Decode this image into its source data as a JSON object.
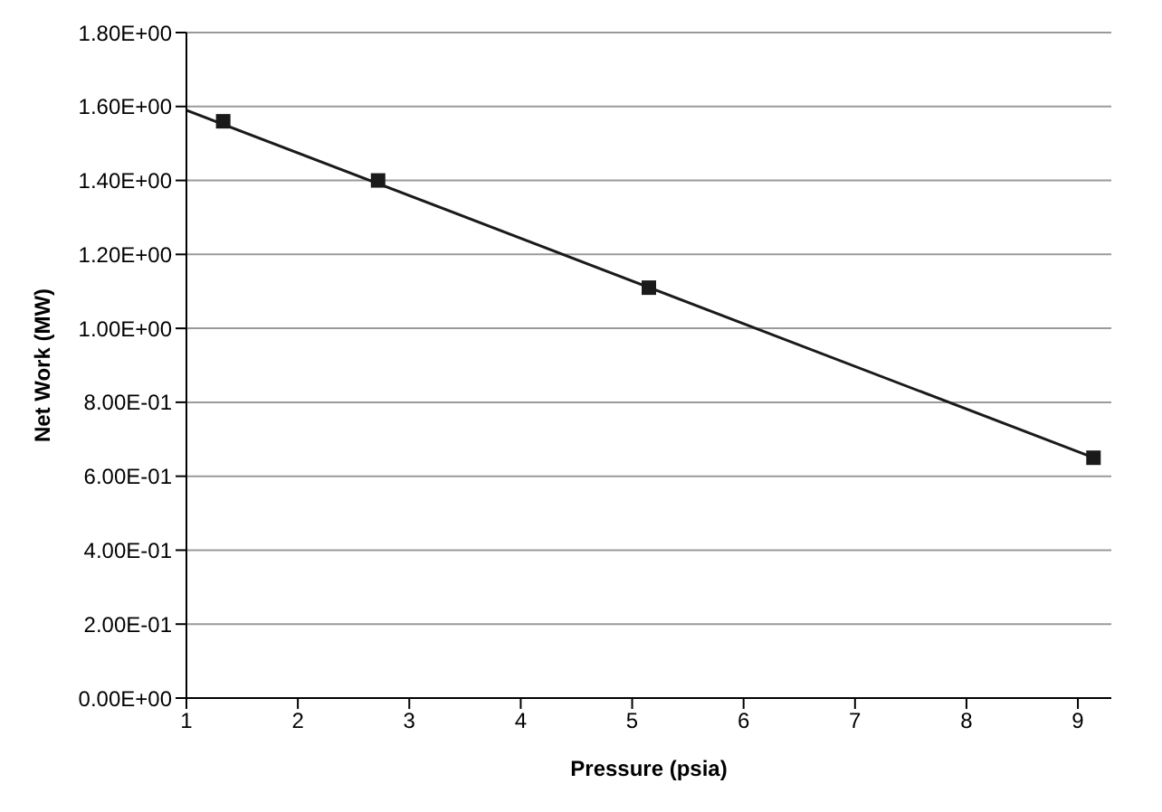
{
  "chart_data": {
    "type": "scatter",
    "xlabel": "Pressure (psia)",
    "ylabel": "Net Work (MW)",
    "xlim": [
      1,
      9.3
    ],
    "xticks": [
      1,
      2,
      3,
      4,
      5,
      6,
      7,
      8,
      9
    ],
    "ylim": [
      0,
      1.8
    ],
    "yticks": [
      {
        "value": 0,
        "label": "0.00E+00"
      },
      {
        "value": 0.2,
        "label": "2.00E-01"
      },
      {
        "value": 0.4,
        "label": "4.00E-01"
      },
      {
        "value": 0.6,
        "label": "6.00E-01"
      },
      {
        "value": 0.8,
        "label": "8.00E-01"
      },
      {
        "value": 1.0,
        "label": "1.00E+00"
      },
      {
        "value": 1.2,
        "label": "1.20E+00"
      },
      {
        "value": 1.4,
        "label": "1.40E+00"
      },
      {
        "value": 1.6,
        "label": "1.60E+00"
      },
      {
        "value": 1.8,
        "label": "1.80E+00"
      }
    ],
    "grid": "y",
    "series": [
      {
        "color": "#1a1a1a",
        "marker": "square",
        "x": [
          1.33,
          2.72,
          5.15,
          9.14
        ],
        "values": [
          1.56,
          1.4,
          1.11,
          0.65
        ]
      },
      {
        "type": "line",
        "color": "#1a1a1a",
        "marker": "none",
        "line_style": "solid",
        "x": [
          1,
          9.14
        ],
        "values": [
          1.59,
          0.65
        ]
      }
    ]
  }
}
